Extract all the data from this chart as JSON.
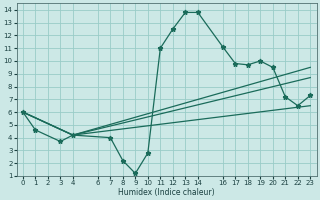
{
  "bg_color": "#cce8e6",
  "grid_color": "#99ccc8",
  "line_color": "#1a6b5a",
  "xlabel": "Humidex (Indice chaleur)",
  "xlim": [
    -0.5,
    23.5
  ],
  "ylim": [
    1,
    14.5
  ],
  "xticks": [
    0,
    1,
    2,
    3,
    4,
    6,
    7,
    8,
    9,
    10,
    11,
    12,
    13,
    14,
    16,
    17,
    18,
    19,
    20,
    21,
    22,
    23
  ],
  "yticks": [
    1,
    2,
    3,
    4,
    5,
    6,
    7,
    8,
    9,
    10,
    11,
    12,
    13,
    14
  ],
  "series_main_x": [
    0,
    1,
    3,
    4,
    7,
    8,
    9,
    10,
    11,
    12,
    13,
    14,
    16,
    17,
    18,
    19,
    20,
    21,
    22,
    23
  ],
  "series_main_y": [
    6.0,
    4.6,
    3.7,
    4.2,
    4.0,
    2.2,
    1.2,
    2.8,
    11.0,
    12.5,
    13.8,
    13.8,
    11.1,
    9.8,
    9.7,
    10.0,
    9.5,
    7.2,
    6.5,
    7.3
  ],
  "line1_x": [
    0,
    4,
    23
  ],
  "line1_y": [
    6.0,
    4.2,
    9.5
  ],
  "line2_x": [
    0,
    4,
    23
  ],
  "line2_y": [
    6.0,
    4.2,
    8.7
  ],
  "line3_x": [
    0,
    4,
    23
  ],
  "line3_y": [
    6.0,
    4.2,
    6.5
  ]
}
